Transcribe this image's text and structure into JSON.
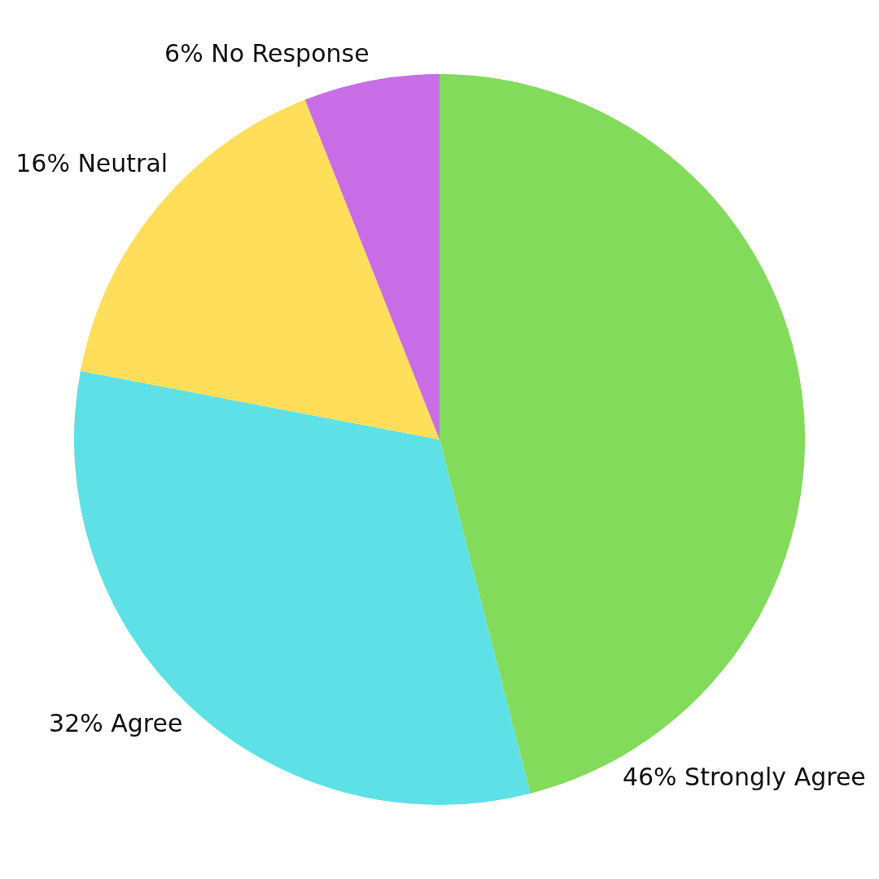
{
  "chart_data": {
    "type": "pie",
    "categories": [
      "Strongly Agree",
      "Agree",
      "Neutral",
      "No Response"
    ],
    "values": [
      46,
      32,
      16,
      6
    ],
    "value_labels": [
      "46%",
      "32%",
      "16%",
      "6%"
    ],
    "colors": [
      "#82db5a",
      "#5ee1e6",
      "#ffde59",
      "#c96de6"
    ],
    "legend": false
  }
}
